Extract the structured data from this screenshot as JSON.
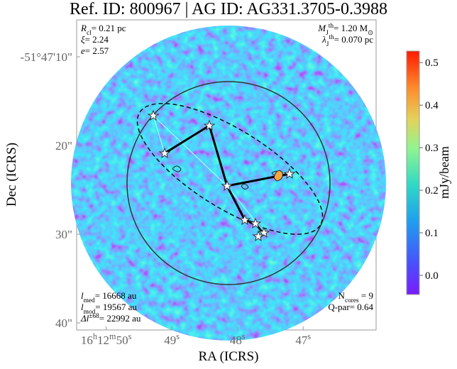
{
  "chart_data": {
    "type": "image",
    "title": "Ref. ID: 800967 | AG ID: AG331.3705-0.3988",
    "x_label": "RA (ICRS)",
    "y_label": "Dec (ICRS)",
    "xlim": [
      50.45,
      45.89
    ],
    "xticks": [
      {
        "value": 50,
        "label": [
          "16",
          "h",
          "12",
          "m",
          "50",
          "s"
        ]
      },
      {
        "value": 49,
        "label": [
          "49",
          "s"
        ]
      },
      {
        "value": 48,
        "label": [
          "48",
          "s"
        ]
      },
      {
        "value": 47,
        "label": [
          "47",
          "s"
        ]
      }
    ],
    "ylim": [
      5.84,
      40.8
    ],
    "yticks": [
      {
        "value": 10,
        "label": "-51°47'10\""
      },
      {
        "value": 20,
        "label": "20\""
      },
      {
        "value": 30,
        "label": "30\""
      },
      {
        "value": 40,
        "label": "40\""
      }
    ],
    "colorbar": {
      "label": "mJy/beam",
      "lim": [
        -0.045,
        0.527
      ],
      "ticks": [
        {
          "value": 0,
          "label": "0.0"
        },
        0.1,
        0.2,
        0.3,
        0.4,
        0.5
      ]
    },
    "annotations": {
      "top_left": [
        [
          [
            "R",
            "i"
          ],
          [
            "cl",
            "sub"
          ],
          [
            "= 0.21 pc",
            "n"
          ]
        ],
        [
          [
            "ξ",
            "i"
          ],
          [
            "= 2.24",
            "n"
          ]
        ],
        [
          [
            "e",
            "i"
          ],
          [
            "= 2.57",
            "n"
          ]
        ]
      ],
      "top_right": [
        [
          [
            "M",
            "i"
          ],
          [
            "J",
            "sub"
          ],
          [
            "th",
            "sup"
          ],
          [
            "= 1.20 M",
            "n"
          ],
          [
            "⊙",
            "sub"
          ]
        ],
        [
          [
            "λ",
            "i"
          ],
          [
            "J",
            "sub"
          ],
          [
            "th",
            "sup"
          ],
          [
            "= 0.070 pc",
            "n"
          ]
        ]
      ],
      "bottom_left": [
        [
          [
            "l",
            "i"
          ],
          [
            "med",
            "sub"
          ],
          [
            "= 16668 au",
            "n"
          ]
        ],
        [
          [
            "l",
            "i"
          ],
          [
            "mod",
            "sub"
          ],
          [
            "= 19567 au",
            "n"
          ]
        ],
        [
          [
            "Δl",
            "i"
          ],
          [
            "±68",
            "sup"
          ],
          [
            "= 22992 au",
            "n"
          ]
        ]
      ],
      "bottom_right": [
        [
          [
            "N",
            "n"
          ],
          [
            "cores",
            "sub"
          ],
          [
            " = 9",
            "n"
          ]
        ],
        [
          [
            "Q-par= 0.64",
            "n"
          ]
        ]
      ]
    }
  }
}
